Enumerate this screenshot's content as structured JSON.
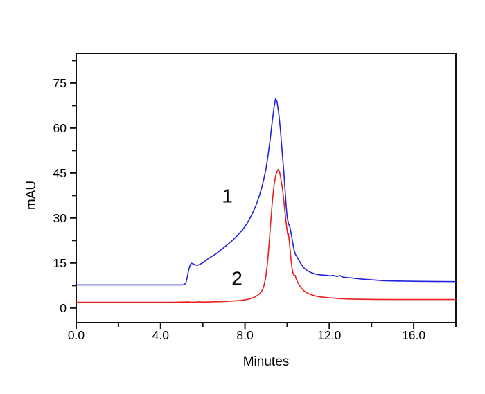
{
  "chart_data": {
    "type": "line",
    "title": "",
    "xlabel": "Minutes",
    "ylabel": "mAU",
    "xlim": [
      0,
      18
    ],
    "ylim": [
      -4.9,
      84.9
    ],
    "grid": false,
    "legend": "none",
    "background_color": "#ffffff",
    "axis_color": "#111111",
    "x_major_ticks": [
      0,
      4,
      8,
      12,
      16
    ],
    "x_major_tick_labels": [
      "0.0",
      "4.0",
      "8.0",
      "12.0",
      "16.0"
    ],
    "x_minor_ticks": [
      2,
      6,
      10,
      14,
      18
    ],
    "y_major_ticks": [
      0,
      15,
      30,
      45,
      60,
      75
    ],
    "y_major_tick_labels": [
      "0",
      "15",
      "30",
      "45",
      "60",
      "75"
    ],
    "y_minor_ticks": [
      7.5,
      22.5,
      37.5,
      52.5,
      67.5,
      82.5
    ],
    "annotations": [
      {
        "text": "1",
        "x": 7.16,
        "y": 37.3,
        "color": "#000000"
      },
      {
        "text": "2",
        "x": 7.62,
        "y": 9.9,
        "color": "#000000"
      }
    ],
    "series": [
      {
        "name": "1",
        "color": "#2121dd",
        "baseline_mAU": 7.7,
        "peak_apex_min": 9.45,
        "peak_apex_mAU": 69.7,
        "points_min_mAU": [
          [
            0,
            7.7
          ],
          [
            0.8,
            7.7
          ],
          [
            1.6,
            7.7
          ],
          [
            2.4,
            7.7
          ],
          [
            3.2,
            7.7
          ],
          [
            4.0,
            7.7
          ],
          [
            4.6,
            7.7
          ],
          [
            5.0,
            7.7
          ],
          [
            5.12,
            7.8
          ],
          [
            5.2,
            8.4
          ],
          [
            5.27,
            10.4
          ],
          [
            5.33,
            12.7
          ],
          [
            5.4,
            14.3
          ],
          [
            5.46,
            14.9
          ],
          [
            5.55,
            14.7
          ],
          [
            5.65,
            14.3
          ],
          [
            5.78,
            14.3
          ],
          [
            5.9,
            14.7
          ],
          [
            6.05,
            15.3
          ],
          [
            6.25,
            16.4
          ],
          [
            6.45,
            17.3
          ],
          [
            6.65,
            18.2
          ],
          [
            6.9,
            19.6
          ],
          [
            7.15,
            21.0
          ],
          [
            7.4,
            22.5
          ],
          [
            7.65,
            24.2
          ],
          [
            7.9,
            26.2
          ],
          [
            8.1,
            28.2
          ],
          [
            8.3,
            30.8
          ],
          [
            8.5,
            33.8
          ],
          [
            8.7,
            37.8
          ],
          [
            8.85,
            41.5
          ],
          [
            9.0,
            46.5
          ],
          [
            9.1,
            51.0
          ],
          [
            9.2,
            56.5
          ],
          [
            9.3,
            62.5
          ],
          [
            9.38,
            67.0
          ],
          [
            9.45,
            69.7
          ],
          [
            9.52,
            68.8
          ],
          [
            9.6,
            65.0
          ],
          [
            9.68,
            59.5
          ],
          [
            9.76,
            52.5
          ],
          [
            9.84,
            45.5
          ],
          [
            9.9,
            39.5
          ],
          [
            9.96,
            33.5
          ],
          [
            10.0,
            30.5
          ],
          [
            10.06,
            28.2
          ],
          [
            10.13,
            27.0
          ],
          [
            10.2,
            24.5
          ],
          [
            10.27,
            21.5
          ],
          [
            10.33,
            19.3
          ],
          [
            10.4,
            17.8
          ],
          [
            10.47,
            17.0
          ],
          [
            10.55,
            16.0
          ],
          [
            10.65,
            14.8
          ],
          [
            10.78,
            13.5
          ],
          [
            10.92,
            12.6
          ],
          [
            11.1,
            11.9
          ],
          [
            11.35,
            11.3
          ],
          [
            11.6,
            11.0
          ],
          [
            11.85,
            10.9
          ],
          [
            12.05,
            10.7
          ],
          [
            12.2,
            10.9
          ],
          [
            12.35,
            10.5
          ],
          [
            12.5,
            10.8
          ],
          [
            12.65,
            10.3
          ],
          [
            12.9,
            10.1
          ],
          [
            13.2,
            9.9
          ],
          [
            13.6,
            9.6
          ],
          [
            14.0,
            9.4
          ],
          [
            14.6,
            9.1
          ],
          [
            15.2,
            9.0
          ],
          [
            16.0,
            8.9
          ],
          [
            16.8,
            8.85
          ],
          [
            18.0,
            8.8
          ]
        ]
      },
      {
        "name": "2",
        "color": "#ea1c1c",
        "baseline_mAU": 1.9,
        "peak_apex_min": 9.58,
        "peak_apex_mAU": 46.2,
        "points_min_mAU": [
          [
            0,
            1.9
          ],
          [
            0.8,
            1.9
          ],
          [
            1.6,
            1.9
          ],
          [
            2.4,
            1.9
          ],
          [
            3.2,
            1.9
          ],
          [
            4.0,
            1.9
          ],
          [
            4.6,
            1.9
          ],
          [
            5.0,
            1.95
          ],
          [
            5.3,
            2.0
          ],
          [
            5.55,
            1.9
          ],
          [
            5.8,
            2.05
          ],
          [
            6.1,
            1.95
          ],
          [
            6.4,
            2.05
          ],
          [
            6.7,
            2.1
          ],
          [
            7.0,
            2.15
          ],
          [
            7.35,
            2.3
          ],
          [
            7.7,
            2.45
          ],
          [
            8.0,
            2.7
          ],
          [
            8.25,
            3.1
          ],
          [
            8.45,
            3.6
          ],
          [
            8.6,
            4.2
          ],
          [
            8.72,
            4.9
          ],
          [
            8.82,
            5.9
          ],
          [
            8.9,
            7.4
          ],
          [
            8.98,
            10.0
          ],
          [
            9.06,
            14.5
          ],
          [
            9.14,
            21.0
          ],
          [
            9.22,
            28.5
          ],
          [
            9.3,
            35.5
          ],
          [
            9.38,
            41.0
          ],
          [
            9.46,
            44.2
          ],
          [
            9.52,
            45.5
          ],
          [
            9.58,
            46.2
          ],
          [
            9.64,
            45.3
          ],
          [
            9.7,
            43.2
          ],
          [
            9.78,
            39.8
          ],
          [
            9.84,
            35.8
          ],
          [
            9.9,
            31.8
          ],
          [
            9.96,
            28.0
          ],
          [
            10.0,
            25.8
          ],
          [
            10.03,
            24.2
          ],
          [
            10.06,
            24.8
          ],
          [
            10.1,
            22.4
          ],
          [
            10.14,
            19.5
          ],
          [
            10.18,
            16.5
          ],
          [
            10.23,
            13.5
          ],
          [
            10.28,
            11.6
          ],
          [
            10.33,
            10.8
          ],
          [
            10.38,
            10.9
          ],
          [
            10.44,
            9.5
          ],
          [
            10.5,
            8.6
          ],
          [
            10.58,
            7.6
          ],
          [
            10.68,
            6.6
          ],
          [
            10.8,
            5.7
          ],
          [
            10.95,
            5.0
          ],
          [
            11.15,
            4.4
          ],
          [
            11.4,
            3.9
          ],
          [
            11.7,
            3.6
          ],
          [
            12.0,
            3.4
          ],
          [
            12.4,
            3.15
          ],
          [
            12.9,
            3.0
          ],
          [
            13.5,
            2.9
          ],
          [
            14.2,
            2.85
          ],
          [
            15.0,
            2.8
          ],
          [
            16.0,
            2.8
          ],
          [
            17.0,
            2.8
          ],
          [
            18.0,
            2.8
          ]
        ]
      }
    ]
  }
}
